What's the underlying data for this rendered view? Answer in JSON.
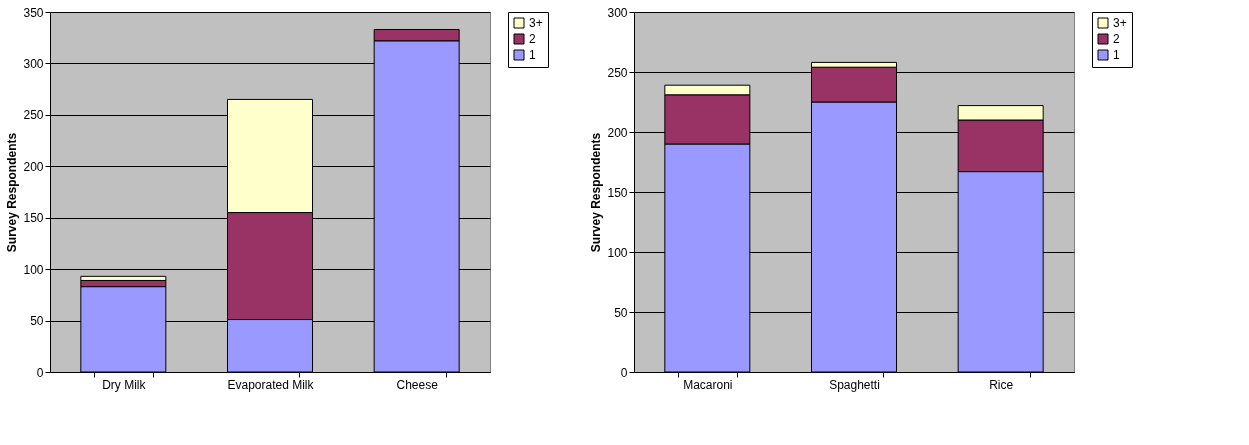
{
  "chart_data": [
    {
      "type": "bar",
      "stacked": true,
      "ylabel": "Survey Respondents",
      "categories": [
        "Dry Milk",
        "Evaporated Milk",
        "Cheese"
      ],
      "ylim": [
        0,
        350
      ],
      "yticks": [
        0,
        50,
        100,
        150,
        200,
        250,
        300,
        350
      ],
      "grid": "y",
      "legend": "right",
      "series": [
        {
          "name": "1",
          "color": "#9999ff",
          "values": [
            83,
            51,
            322
          ]
        },
        {
          "name": "2",
          "color": "#993366",
          "values": [
            6,
            104,
            11
          ]
        },
        {
          "name": "3+",
          "color": "#ffffcc",
          "values": [
            4,
            110,
            null
          ]
        }
      ]
    },
    {
      "type": "bar",
      "stacked": true,
      "ylabel": "Survey Respondents",
      "categories": [
        "Macaroni",
        "Spaghetti",
        "Rice"
      ],
      "ylim": [
        0,
        300
      ],
      "yticks": [
        0,
        50,
        100,
        150,
        200,
        250,
        300
      ],
      "grid": "y",
      "legend": "right",
      "series": [
        {
          "name": "1",
          "color": "#9999ff",
          "values": [
            190,
            225,
            167
          ]
        },
        {
          "name": "2",
          "color": "#993366",
          "values": [
            41,
            29,
            43
          ]
        },
        {
          "name": "3+",
          "color": "#ffffcc",
          "values": [
            8,
            4,
            12
          ]
        }
      ]
    }
  ]
}
